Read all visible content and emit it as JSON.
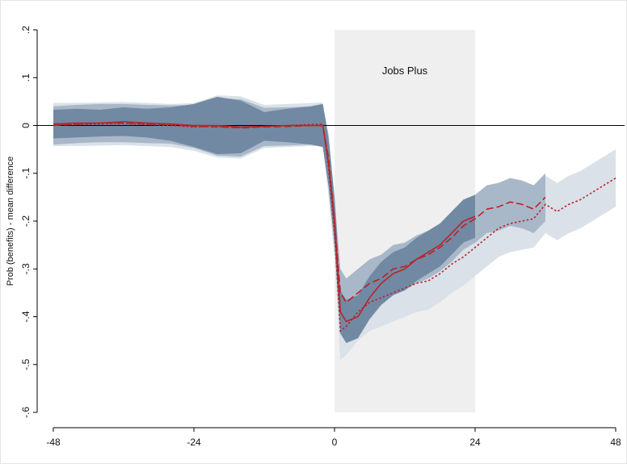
{
  "chart_data": {
    "type": "line",
    "y_label": "Prob (benefits) - mean difference",
    "shade": {
      "label": "Jobs Plus",
      "xlim": [
        0,
        24
      ],
      "color": "#efefef"
    },
    "hline": 0,
    "x": [
      -48,
      -44,
      -40,
      -36,
      -32,
      -28,
      -24,
      -20,
      -16,
      -12,
      -8,
      -4,
      -2,
      -1,
      0,
      1,
      2,
      4,
      6,
      8,
      10,
      12,
      14,
      16,
      18,
      20,
      22,
      24,
      26,
      28,
      30,
      32,
      34,
      36,
      38,
      40,
      42,
      44,
      46,
      48
    ],
    "series": [
      {
        "color": "#b8232a",
        "dash": "dotted",
        "band_color": "#dae1e8",
        "values": [
          0.002,
          0.002,
          0.003,
          0.004,
          0.002,
          0.0,
          -0.003,
          -0.002,
          -0.004,
          -0.002,
          0.0,
          0.002,
          0.003,
          -0.09,
          -0.22,
          -0.43,
          -0.42,
          -0.39,
          -0.37,
          -0.36,
          -0.35,
          -0.34,
          -0.33,
          -0.325,
          -0.31,
          -0.29,
          -0.275,
          -0.255,
          -0.235,
          -0.215,
          -0.205,
          -0.2,
          -0.195,
          -0.165,
          -0.18,
          -0.165,
          -0.155,
          -0.14,
          -0.125,
          -0.11
        ],
        "lower": [
          -0.043,
          -0.043,
          -0.042,
          -0.041,
          -0.043,
          -0.045,
          -0.053,
          -0.067,
          -0.069,
          -0.047,
          -0.045,
          -0.043,
          -0.042,
          -0.15,
          -0.28,
          -0.49,
          -0.48,
          -0.45,
          -0.43,
          -0.42,
          -0.41,
          -0.4,
          -0.39,
          -0.385,
          -0.37,
          -0.35,
          -0.335,
          -0.315,
          -0.295,
          -0.275,
          -0.265,
          -0.26,
          -0.255,
          -0.225,
          -0.24,
          -0.225,
          -0.215,
          -0.2,
          -0.185,
          -0.17
        ],
        "upper": [
          0.047,
          0.047,
          0.048,
          0.049,
          0.047,
          0.045,
          0.047,
          0.063,
          0.061,
          0.043,
          0.045,
          0.047,
          0.048,
          -0.03,
          -0.16,
          -0.37,
          -0.36,
          -0.33,
          -0.31,
          -0.3,
          -0.29,
          -0.28,
          -0.27,
          -0.265,
          -0.25,
          -0.23,
          -0.215,
          -0.195,
          -0.175,
          -0.155,
          -0.145,
          -0.14,
          -0.135,
          -0.105,
          -0.12,
          -0.105,
          -0.095,
          -0.08,
          -0.065,
          -0.05
        ]
      },
      {
        "color": "#b8232a",
        "dash": "dashed",
        "band_color": "#a9b8c8",
        "values": [
          0.0,
          0.003,
          0.005,
          0.005,
          0.003,
          0.002,
          -0.002,
          -0.003,
          -0.005,
          -0.003,
          -0.002,
          0.0,
          0.0,
          -0.07,
          -0.2,
          -0.35,
          -0.37,
          -0.35,
          -0.33,
          -0.32,
          -0.3,
          -0.295,
          -0.28,
          -0.27,
          -0.255,
          -0.235,
          -0.21,
          -0.195,
          -0.175,
          -0.17,
          -0.16,
          -0.165,
          -0.175,
          -0.15,
          null,
          null,
          null,
          null,
          null,
          null
        ],
        "lower": [
          -0.04,
          -0.037,
          -0.035,
          -0.035,
          -0.037,
          -0.038,
          -0.047,
          -0.063,
          -0.065,
          -0.043,
          -0.042,
          -0.04,
          -0.045,
          -0.12,
          -0.25,
          -0.4,
          -0.42,
          -0.4,
          -0.38,
          -0.37,
          -0.35,
          -0.345,
          -0.33,
          -0.32,
          -0.305,
          -0.285,
          -0.26,
          -0.245,
          -0.225,
          -0.22,
          -0.21,
          -0.215,
          -0.225,
          -0.2,
          null,
          null,
          null,
          null,
          null,
          null
        ],
        "upper": [
          0.04,
          0.043,
          0.045,
          0.045,
          0.043,
          0.042,
          0.043,
          0.057,
          0.055,
          0.037,
          0.038,
          0.04,
          0.045,
          -0.02,
          -0.15,
          -0.3,
          -0.32,
          -0.3,
          -0.28,
          -0.27,
          -0.25,
          -0.245,
          -0.23,
          -0.22,
          -0.205,
          -0.185,
          -0.16,
          -0.145,
          -0.125,
          -0.12,
          -0.11,
          -0.115,
          -0.125,
          -0.1,
          null,
          null,
          null,
          null,
          null,
          null
        ]
      },
      {
        "color": "#b8232a",
        "dash": "solid",
        "band_color": "#7289a3",
        "values": [
          0.003,
          0.005,
          0.005,
          0.008,
          0.005,
          0.003,
          0.0,
          0.0,
          -0.003,
          -0.002,
          0.0,
          0.0,
          0.0,
          -0.08,
          -0.2,
          -0.39,
          -0.41,
          -0.4,
          -0.36,
          -0.33,
          -0.31,
          -0.3,
          -0.28,
          -0.265,
          -0.25,
          -0.225,
          -0.2,
          -0.19,
          null,
          null,
          null,
          null,
          null,
          null,
          null,
          null,
          null,
          null,
          null,
          null
        ],
        "lower": [
          -0.027,
          -0.025,
          -0.023,
          -0.022,
          -0.025,
          -0.032,
          -0.045,
          -0.06,
          -0.058,
          -0.032,
          -0.035,
          -0.04,
          -0.045,
          -0.13,
          -0.25,
          -0.435,
          -0.455,
          -0.445,
          -0.405,
          -0.375,
          -0.355,
          -0.345,
          -0.325,
          -0.31,
          -0.295,
          -0.27,
          -0.245,
          -0.235,
          null,
          null,
          null,
          null,
          null,
          null,
          null,
          null,
          null,
          null,
          null,
          null
        ],
        "upper": [
          0.033,
          0.035,
          0.033,
          0.038,
          0.035,
          0.038,
          0.045,
          0.06,
          0.052,
          0.028,
          0.035,
          0.04,
          0.045,
          -0.03,
          -0.15,
          -0.345,
          -0.365,
          -0.355,
          -0.315,
          -0.285,
          -0.265,
          -0.255,
          -0.235,
          -0.22,
          -0.205,
          -0.18,
          -0.155,
          -0.145,
          null,
          null,
          null,
          null,
          null,
          null,
          null,
          null,
          null,
          null,
          null,
          null
        ]
      }
    ],
    "xlim": [
      -48,
      48
    ],
    "xticks": [
      -48,
      -24,
      0,
      24,
      48
    ],
    "ylim": [
      -0.6,
      0.2
    ],
    "yticks": [
      {
        "value": 0.2,
        "label": ".2"
      },
      {
        "value": 0.1,
        "label": ".1"
      },
      0,
      {
        "value": -0.1,
        "label": "-.1"
      },
      {
        "value": -0.2,
        "label": "-.2"
      },
      {
        "value": -0.3,
        "label": "-.3"
      },
      {
        "value": -0.4,
        "label": "-.4"
      },
      {
        "value": -0.5,
        "label": "-.5"
      },
      {
        "value": -0.6,
        "label": "-.6"
      }
    ]
  }
}
